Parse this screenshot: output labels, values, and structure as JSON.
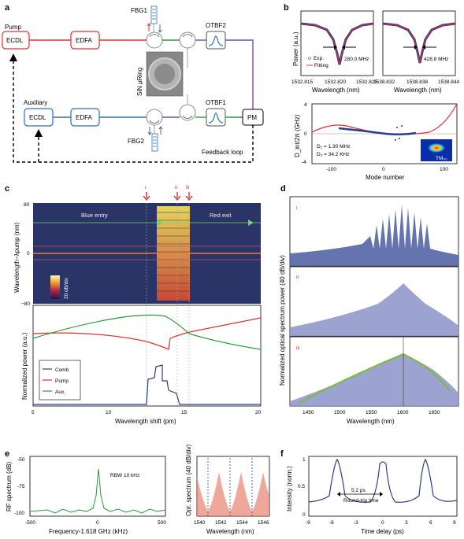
{
  "panels": {
    "a": {
      "letter": "a",
      "pump_label": "Pump",
      "ecdl_pump": "ECDL",
      "edfa_pump": "EDFA",
      "fbg1": "FBG1",
      "otbf2": "OTBF2",
      "ring_label": "SiN μRing",
      "auxiliary_label": "Auxiliary",
      "ecdl_aux": "ECDL",
      "edfa_aux": "EDFA",
      "fbg2": "FBG2",
      "otbf1": "OTBF1",
      "pm": "PM",
      "feedback": "Feedback loop"
    },
    "b": {
      "letter": "b",
      "ylabel_top": "Power (a.u.)",
      "legend_exp": "Exp.",
      "legend_fit": "Fitting",
      "res1_width": "280.0 MHz",
      "res2_width": "428.8 MHz",
      "res1_ticks": [
        "1532.815",
        "1532.820",
        "1532.825"
      ],
      "res2_ticks": [
        "1538.832",
        "1538.838",
        "1538.844"
      ],
      "xlabel_top": "Wavelength (nm)",
      "ylabel_bottom": "D_int/2π (GHz)",
      "d2": "D₂ = 1.30 MHz",
      "d3": "D₃ = 34.2 KHz",
      "mode": "TM₀₀",
      "xlabel_bottom": "Mode number",
      "yticks_bottom": [
        "4",
        "0",
        "-4"
      ],
      "xticks_bottom": [
        "-100",
        "0",
        "100"
      ]
    },
    "c": {
      "letter": "c",
      "markers": [
        "i",
        "ii",
        "iii"
      ],
      "blue_entry": "Blue entry",
      "red_exit": "Red exit",
      "ylabel_top": "Wavelength−λpump (nm)",
      "yticks_top": [
        "80",
        "0",
        "−80"
      ],
      "colorbar": "20 dB/div",
      "ylabel_bottom": "Normalized power (a.u.)",
      "legend": [
        "Comb",
        "Pump",
        "Aux."
      ],
      "xticks": [
        "5",
        "10",
        "15",
        "20"
      ],
      "xlabel": "Wavelength shift (pm)"
    },
    "d": {
      "letter": "d",
      "ylabel": "Normalized optical spectrum power (40 dB/div)",
      "sub": [
        "i",
        "ii",
        "iii"
      ],
      "xticks": [
        "1450",
        "1500",
        "1550",
        "1600",
        "1650"
      ],
      "xlabel": "Wavelength (nm)"
    },
    "e": {
      "letter": "e",
      "ylabel_left": "RF spectrum (dB)",
      "rbw": "RBW 10 kHz",
      "yticks_left": [
        "-50",
        "-75",
        "-100"
      ],
      "xticks_left": [
        "-500",
        "0",
        "500"
      ],
      "xlabel_left": "Frequency-1.618 GHz (kHz)",
      "ylabel_right": "Opt. spectrum (40 dB/div)",
      "xticks_right": [
        "1540",
        "1542",
        "1544",
        "1546"
      ],
      "xlabel_right": "Wavelength (nm)"
    },
    "f": {
      "letter": "f",
      "ylabel": "Intensity (norm.)",
      "yticks": [
        "1",
        "0.5",
        "0"
      ],
      "annot_time": "5.2 ps",
      "annot_label": "Round-trip time",
      "xticks": [
        "-9",
        "-6",
        "-3",
        "0",
        "3",
        "6",
        "9"
      ],
      "xlabel": "Time delay (ps)"
    }
  }
}
